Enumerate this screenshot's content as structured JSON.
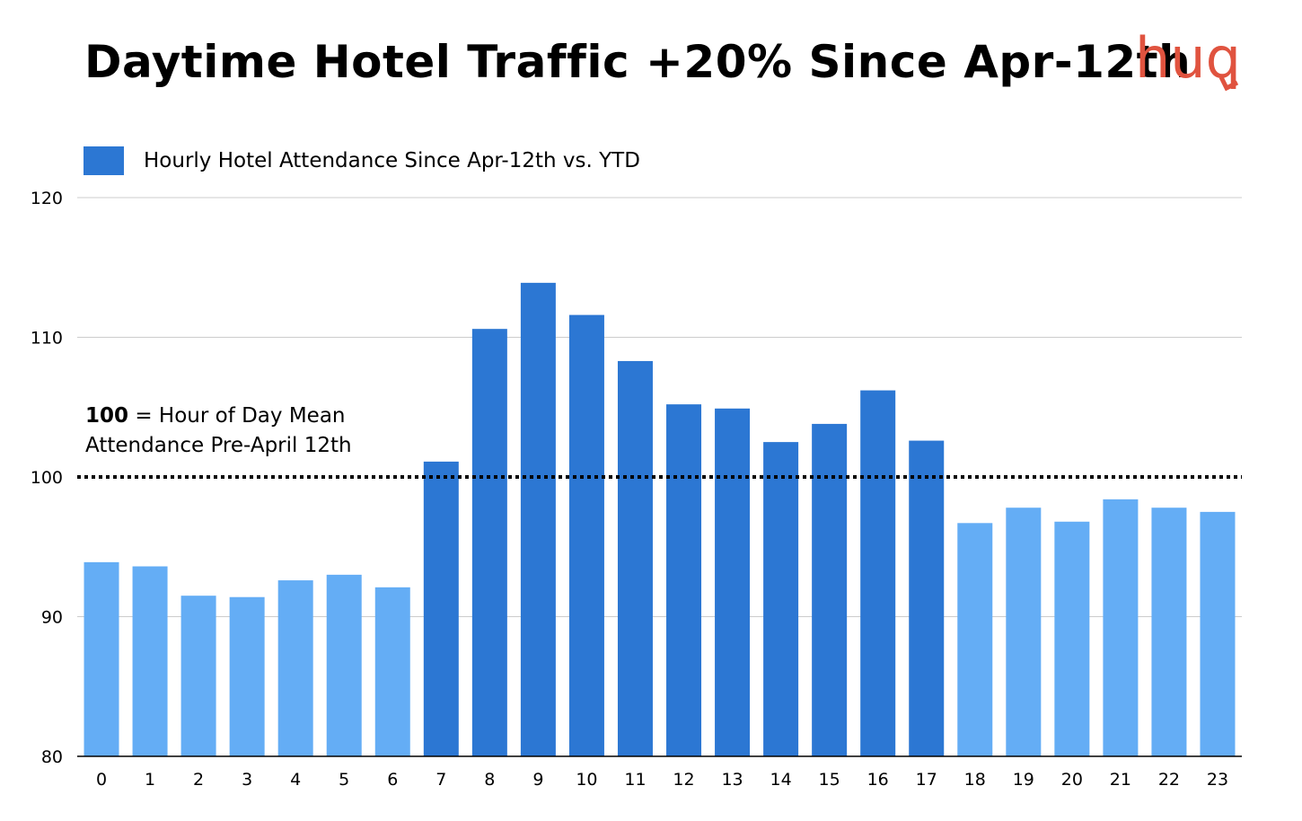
{
  "title": "Daytime Hotel Traffic +20% Since Apr-12th",
  "logo": {
    "text": "huq",
    "color": "#e0533f"
  },
  "legend": {
    "label": "Hourly Hotel Attendance Since Apr-12th vs. YTD",
    "color": "#2c77d3"
  },
  "annotation": {
    "bold": "100",
    "rest_line1": " = Hour of Day Mean",
    "line2": "Attendance Pre-April 12th"
  },
  "colors": {
    "highlight": "#2c77d3",
    "base": "#64adf5",
    "grid": "#cccccc",
    "reference_line": "#000000"
  },
  "chart_data": {
    "type": "bar",
    "title": "Daytime Hotel Traffic +20% Since Apr-12th",
    "categories": [
      "0",
      "1",
      "2",
      "3",
      "4",
      "5",
      "6",
      "7",
      "8",
      "9",
      "10",
      "11",
      "12",
      "13",
      "14",
      "15",
      "16",
      "17",
      "18",
      "19",
      "20",
      "21",
      "22",
      "23"
    ],
    "series": [
      {
        "name": "Hourly Hotel Attendance Since Apr-12th vs. YTD",
        "values": [
          93.9,
          93.6,
          91.5,
          91.4,
          92.6,
          93.0,
          92.1,
          101.1,
          110.6,
          113.9,
          111.6,
          108.3,
          105.2,
          104.9,
          102.5,
          103.8,
          106.2,
          102.6,
          96.7,
          97.8,
          96.8,
          98.4,
          97.8,
          97.5
        ],
        "highlighted": [
          false,
          false,
          false,
          false,
          false,
          false,
          false,
          true,
          true,
          true,
          true,
          true,
          true,
          true,
          true,
          true,
          true,
          true,
          false,
          false,
          false,
          false,
          false,
          false
        ]
      }
    ],
    "ylim": [
      80,
      120
    ],
    "yticks": [
      80,
      90,
      100,
      110,
      120
    ],
    "reference_line": 100,
    "grid": true,
    "legend_position": "top-left",
    "xlabel": "",
    "ylabel": ""
  }
}
